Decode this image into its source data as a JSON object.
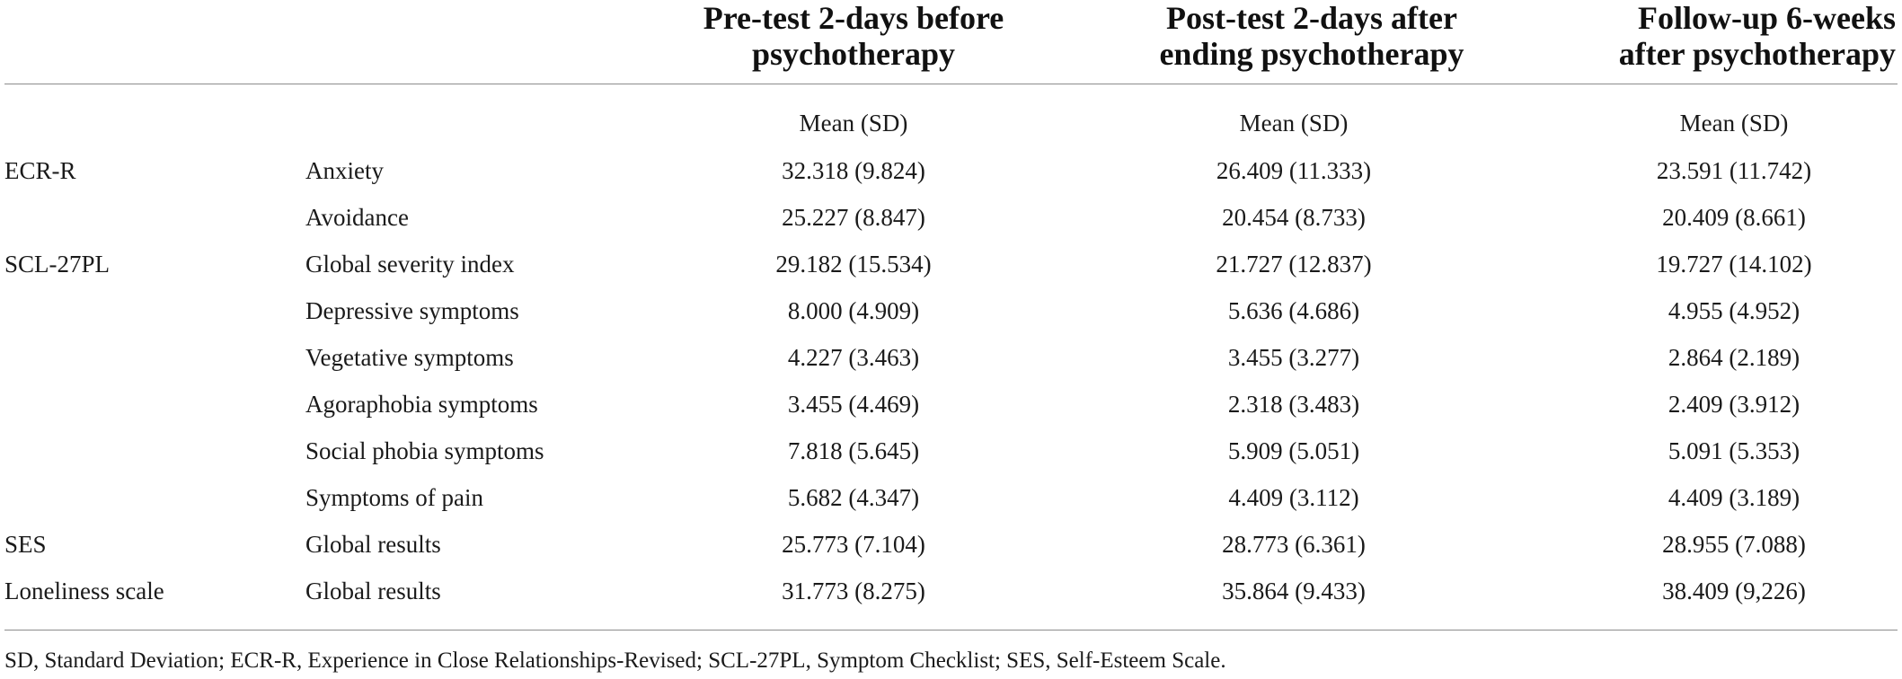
{
  "headers": {
    "col1": [
      "Pre-test 2-days before",
      "psychotherapy"
    ],
    "col2": [
      "Post-test 2-days after",
      "ending psychotherapy"
    ],
    "col3": [
      "Follow-up 6-weeks",
      "after psychotherapy"
    ]
  },
  "subheader": {
    "col1": "Mean (SD)",
    "col2": "Mean (SD)",
    "col3": "Mean (SD)"
  },
  "rows": [
    {
      "instrument": "ECR-R",
      "subscale": "Anxiety",
      "v1": "32.318 (9.824)",
      "v2": "26.409 (11.333)",
      "v3": "23.591 (11.742)"
    },
    {
      "instrument": "",
      "subscale": "Avoidance",
      "v1": "25.227 (8.847)",
      "v2": "20.454 (8.733)",
      "v3": "20.409 (8.661)"
    },
    {
      "instrument": "SCL-27PL",
      "subscale": "Global severity index",
      "v1": "29.182 (15.534)",
      "v2": "21.727 (12.837)",
      "v3": "19.727 (14.102)"
    },
    {
      "instrument": "",
      "subscale": "Depressive symptoms",
      "v1": "8.000 (4.909)",
      "v2": "5.636 (4.686)",
      "v3": "4.955 (4.952)"
    },
    {
      "instrument": "",
      "subscale": "Vegetative symptoms",
      "v1": "4.227 (3.463)",
      "v2": "3.455 (3.277)",
      "v3": "2.864 (2.189)"
    },
    {
      "instrument": "",
      "subscale": "Agoraphobia symptoms",
      "v1": "3.455 (4.469)",
      "v2": "2.318 (3.483)",
      "v3": "2.409 (3.912)"
    },
    {
      "instrument": "",
      "subscale": "Social phobia symptoms",
      "v1": "7.818 (5.645)",
      "v2": "5.909 (5.051)",
      "v3": "5.091 (5.353)"
    },
    {
      "instrument": "",
      "subscale": "Symptoms of pain",
      "v1": "5.682 (4.347)",
      "v2": "4.409 (3.112)",
      "v3": "4.409 (3.189)"
    },
    {
      "instrument": "SES",
      "subscale": "Global results",
      "v1": "25.773 (7.104)",
      "v2": "28.773 (6.361)",
      "v3": "28.955 (7.088)"
    },
    {
      "instrument": "Loneliness scale",
      "subscale": "Global results",
      "v1": "31.773 (8.275)",
      "v2": "35.864 (9.433)",
      "v3": "38.409 (9,226)"
    }
  ],
  "footnote": "SD, Standard Deviation; ECR-R, Experience in Close Relationships-Revised; SCL-27PL, Symptom Checklist; SES, Self-Esteem Scale."
}
